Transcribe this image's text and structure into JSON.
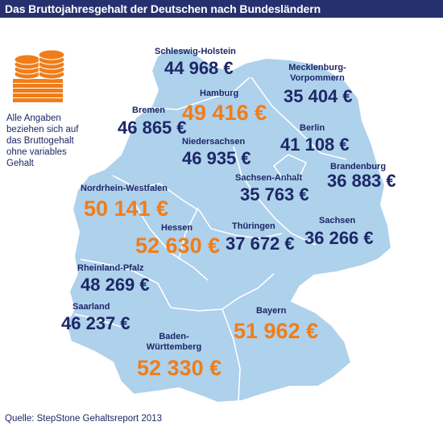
{
  "title": "Das Bruttojahresgehalt der Deutschen nach Bundesländern",
  "note": "Alle Angaben beziehen sich auf das Bruttogehalt ohne variables Gehalt",
  "source": "Quelle: StepStone Gehaltsreport 2013",
  "icon": "money-stack-icon",
  "colors": {
    "header": "#27306e",
    "map": "#aed1ec",
    "navy": "#1d2766",
    "highlight": "#f07d19"
  },
  "states": {
    "schleswig_holstein": {
      "name": "Schleswig-Holstein",
      "salary": "44 968 €"
    },
    "mecklenburg_vorpommern": {
      "name": "Mecklenburg-\nVorpommern",
      "salary": "35 404 €"
    },
    "hamburg": {
      "name": "Hamburg",
      "salary": "49 416 €"
    },
    "bremen": {
      "name": "Bremen",
      "salary": "46 865 €"
    },
    "berlin": {
      "name": "Berlin",
      "salary": "41 108 €"
    },
    "niedersachsen": {
      "name": "Niedersachsen",
      "salary": "46 935 €"
    },
    "brandenburg": {
      "name": "Brandenburg",
      "salary": "36 883 €"
    },
    "sachsen_anhalt": {
      "name": "Sachsen-Anhalt",
      "salary": "35 763 €"
    },
    "nordrhein_westfalen": {
      "name": "Nordrhein-Westfalen",
      "salary": "50 141 €"
    },
    "hessen": {
      "name": "Hessen",
      "salary": "52 630 €"
    },
    "thueringen": {
      "name": "Thüringen",
      "salary": "37 672 €"
    },
    "sachsen": {
      "name": "Sachsen",
      "salary": "36 266 €"
    },
    "rheinland_pfalz": {
      "name": "Rheinland-Pfalz",
      "salary": "48 269 €"
    },
    "saarland": {
      "name": "Saarland",
      "salary": "46 237 €"
    },
    "bayern": {
      "name": "Bayern",
      "salary": "51 962 €"
    },
    "baden_wuerttemberg": {
      "name": "Baden-\nWürttemberg",
      "salary": "52 330 €"
    }
  }
}
